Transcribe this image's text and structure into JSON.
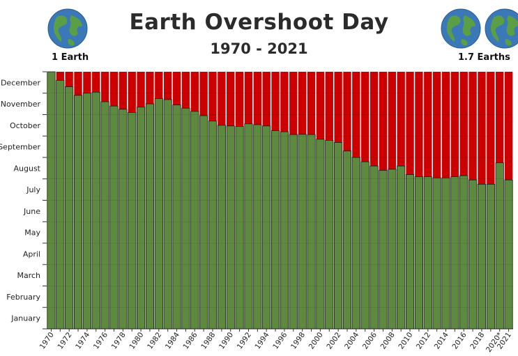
{
  "header": {
    "title": "Earth Overshoot Day",
    "subtitle": "1970 - 2021",
    "left_caption": "1 Earth",
    "right_caption": "1.7 Earths",
    "left_icon": "globe-icon",
    "right_icon": "globe-icon"
  },
  "colors": {
    "overshoot": "#cc0000",
    "within": "#5e8a3f",
    "bar_border": "#1a1a1a",
    "ocean": "#3b78b8",
    "land": "#5a9e45"
  },
  "chart_data": {
    "type": "bar",
    "stacked": true,
    "title": "Earth Overshoot Day",
    "subtitle": "1970 - 2021",
    "categories": [
      "1970",
      "1971",
      "1972",
      "1973",
      "1974",
      "1975",
      "1976",
      "1977",
      "1978",
      "1979",
      "1980",
      "1981",
      "1982",
      "1983",
      "1984",
      "1985",
      "1986",
      "1987",
      "1988",
      "1989",
      "1990",
      "1991",
      "1992",
      "1993",
      "1994",
      "1995",
      "1996",
      "1997",
      "1998",
      "1999",
      "2000",
      "2001",
      "2002",
      "2003",
      "2004",
      "2005",
      "2006",
      "2007",
      "2008",
      "2009",
      "2010",
      "2011",
      "2012",
      "2013",
      "2014",
      "2015",
      "2016",
      "2017",
      "2018",
      "2019",
      "2020*",
      "2021"
    ],
    "x_tick_labels": [
      "1970",
      "",
      "1972",
      "",
      "1974",
      "",
      "1976",
      "",
      "1978",
      "",
      "1980",
      "",
      "1982",
      "",
      "1984",
      "",
      "1986",
      "",
      "1988",
      "",
      "1990",
      "",
      "1992",
      "",
      "1994",
      "",
      "1996",
      "",
      "1998",
      "",
      "2000",
      "",
      "2002",
      "",
      "2004",
      "",
      "2006",
      "",
      "2008",
      "",
      "2010",
      "",
      "2012",
      "",
      "2014",
      "",
      "2016",
      "",
      "2018",
      "",
      "2020*",
      "2021"
    ],
    "y_unit": "month",
    "ylim": [
      0,
      12
    ],
    "y_tick_labels": [
      "January",
      "February",
      "March",
      "April",
      "May",
      "June",
      "July",
      "August",
      "September",
      "October",
      "November",
      "December"
    ],
    "grid": false,
    "values": [
      12.0,
      11.6,
      11.3,
      10.9,
      11.0,
      11.05,
      10.6,
      10.4,
      10.25,
      10.1,
      10.35,
      10.5,
      10.75,
      10.7,
      10.45,
      10.3,
      10.15,
      9.95,
      9.7,
      9.5,
      9.47,
      9.45,
      9.57,
      9.53,
      9.47,
      9.25,
      9.2,
      9.07,
      9.08,
      9.07,
      8.85,
      8.8,
      8.7,
      8.3,
      8.0,
      7.8,
      7.6,
      7.4,
      7.45,
      7.6,
      7.2,
      7.1,
      7.1,
      7.05,
      7.05,
      7.1,
      7.15,
      6.95,
      6.75,
      6.75,
      7.75,
      6.95
    ],
    "series": [
      {
        "values": "values",
        "color": "#5e8a3f"
      },
      {
        "values": "remainder",
        "color": "#cc0000"
      }
    ]
  }
}
